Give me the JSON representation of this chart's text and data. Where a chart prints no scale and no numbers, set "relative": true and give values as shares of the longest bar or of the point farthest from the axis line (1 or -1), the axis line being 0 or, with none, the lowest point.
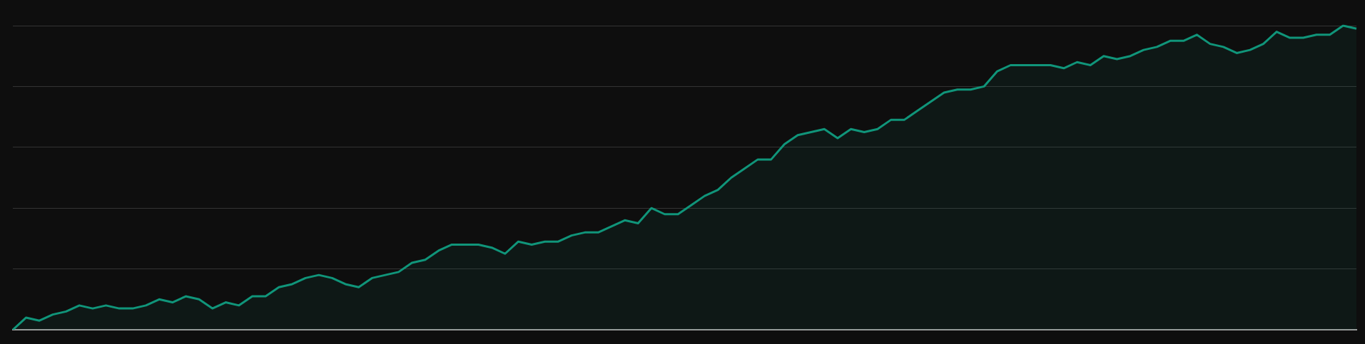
{
  "chart_data": {
    "type": "area",
    "relative": true,
    "grid": "y",
    "color": "#10957a",
    "categories": [
      null,
      null,
      null,
      null,
      null,
      null,
      null,
      null,
      null,
      null,
      null,
      null,
      null,
      null,
      null,
      null,
      null,
      null,
      null,
      null,
      null,
      null,
      null,
      null,
      null,
      null,
      null,
      null,
      null,
      null,
      null,
      null,
      null,
      null,
      null,
      null,
      null,
      null,
      null,
      null,
      null,
      null,
      null,
      null,
      null,
      null,
      null,
      null,
      null,
      null,
      null,
      null,
      null,
      null,
      null,
      null,
      null,
      null,
      null,
      null,
      null,
      null,
      null,
      null,
      null,
      null,
      null,
      null,
      null,
      null,
      null,
      null,
      null,
      null,
      null,
      null,
      null,
      null,
      null,
      null,
      null,
      null,
      null,
      null,
      null,
      null,
      null,
      null,
      null,
      null,
      null,
      null,
      null,
      null,
      null,
      null,
      null,
      null,
      null,
      null,
      null,
      null
    ],
    "values": [
      0,
      0.04,
      0.03,
      0.05,
      0.06,
      0.08,
      0.07,
      0.08,
      0.07,
      0.07,
      0.08,
      0.1,
      0.09,
      0.11,
      0.1,
      0.07,
      0.09,
      0.08,
      0.11,
      0.11,
      0.14,
      0.15,
      0.17,
      0.18,
      0.17,
      0.15,
      0.14,
      0.17,
      0.18,
      0.19,
      0.22,
      0.23,
      0.26,
      0.28,
      0.28,
      0.28,
      0.27,
      0.25,
      0.29,
      0.28,
      0.29,
      0.29,
      0.31,
      0.32,
      0.32,
      0.34,
      0.36,
      0.35,
      0.4,
      0.38,
      0.38,
      0.41,
      0.44,
      0.46,
      0.5,
      0.53,
      0.56,
      0.56,
      0.61,
      0.64,
      0.65,
      0.66,
      0.63,
      0.66,
      0.65,
      0.66,
      0.69,
      0.69,
      0.72,
      0.75,
      0.78,
      0.79,
      0.79,
      0.8,
      0.85,
      0.87,
      0.87,
      0.87,
      0.87,
      0.86,
      0.88,
      0.87,
      0.9,
      0.89,
      0.9,
      0.92,
      0.93,
      0.95,
      0.95,
      0.97,
      0.94,
      0.93,
      0.91,
      0.92,
      0.94,
      0.98,
      0.96,
      0.96,
      0.97,
      0.97,
      1,
      0.99
    ]
  }
}
